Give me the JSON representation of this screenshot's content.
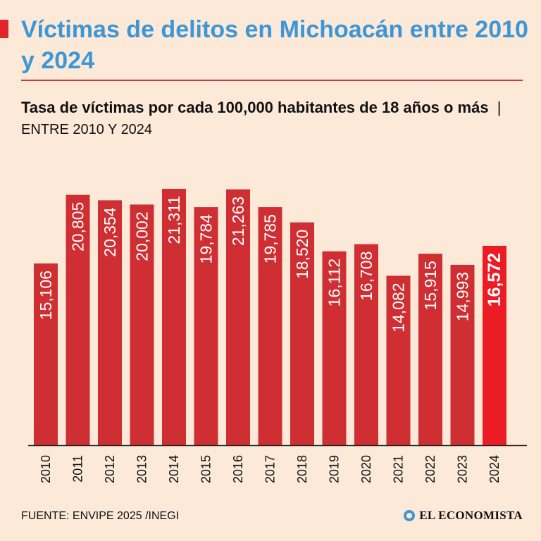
{
  "header": {
    "title": "Víctimas de delitos en Michoacán entre 2010 y 2024",
    "subtitle_strong": "Tasa de víctimas por cada 100,000 habitantes de 18 años o más",
    "subtitle_separator": "|",
    "subtitle_range": "ENTRE 2010 Y 2024"
  },
  "footer": {
    "source": "FUENTE: ENVIPE 2025 /INEGI",
    "brand": "EL ECONOMISTA"
  },
  "colors": {
    "background": "#fde9d8",
    "bar": "#cf2f33",
    "highlight_bar": "#ec1c24",
    "title": "#3d96d6",
    "rule": "#d2383a"
  },
  "chart_data": {
    "type": "bar",
    "title": "Tasa de víctimas por cada 100,000 habitantes de 18 años o más",
    "categories": [
      "2010",
      "2011",
      "2012",
      "2013",
      "2014",
      "2015",
      "2016",
      "2017",
      "2018",
      "2019",
      "2020",
      "2021",
      "2022",
      "2023",
      "2024"
    ],
    "values": [
      15106,
      20805,
      20354,
      20002,
      21311,
      19784,
      21263,
      19785,
      18520,
      16112,
      16708,
      14082,
      15915,
      14993,
      16572
    ],
    "value_labels": [
      "15,106",
      "20,805",
      "20,354",
      "20,002",
      "21,311",
      "19,784",
      "21,263",
      "19,785",
      "18,520",
      "16,112",
      "16,708",
      "14,082",
      "15,915",
      "14,993",
      "16,572"
    ],
    "highlight_index": 14,
    "xlabel": "",
    "ylabel": "",
    "ylim": [
      0,
      21311
    ],
    "grid": false,
    "legend": "none"
  }
}
